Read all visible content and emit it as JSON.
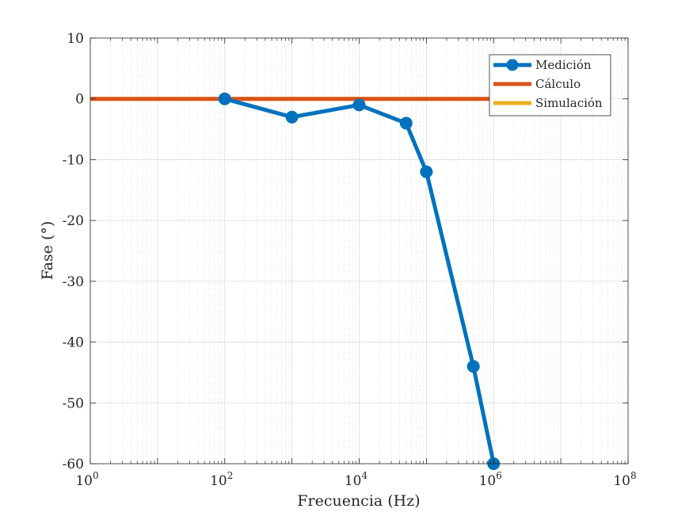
{
  "chart_data": {
    "type": "line",
    "title": "",
    "xlabel": "Frecuencia (Hz)",
    "ylabel": "Fase (°)",
    "x_scale": "log",
    "xlim": [
      1,
      100000000
    ],
    "ylim": [
      -60,
      10
    ],
    "x_ticks": [
      1,
      100,
      10000,
      1000000,
      100000000
    ],
    "x_tick_labels": [
      {
        "base": "10",
        "exp": "0"
      },
      {
        "base": "10",
        "exp": "2"
      },
      {
        "base": "10",
        "exp": "4"
      },
      {
        "base": "10",
        "exp": "6"
      },
      {
        "base": "10",
        "exp": "8"
      }
    ],
    "y_ticks": [
      10,
      0,
      -10,
      -20,
      -30,
      -40,
      -50,
      -60
    ],
    "y_tick_labels": [
      "10",
      "0",
      "-10",
      "-20",
      "-30",
      "-40",
      "-50",
      "-60"
    ],
    "grid": true,
    "minor_grid": true,
    "legend_position": "top-right",
    "series": [
      {
        "name": "Medición",
        "color": "#0072BD",
        "marker": "circle",
        "x": [
          100,
          1000,
          10000,
          50000,
          100000,
          500000,
          1000000
        ],
        "y": [
          0,
          -3,
          -1,
          -4,
          -12,
          -44,
          -60
        ]
      },
      {
        "name": "Cálculo",
        "color": "#D95319",
        "marker": "none",
        "x": [
          1,
          1000000
        ],
        "y": [
          0,
          0
        ]
      },
      {
        "name": "Simulación",
        "color": "#EDB120",
        "marker": "none",
        "x": [
          1,
          1000000
        ],
        "y": [
          0,
          0
        ]
      }
    ]
  }
}
